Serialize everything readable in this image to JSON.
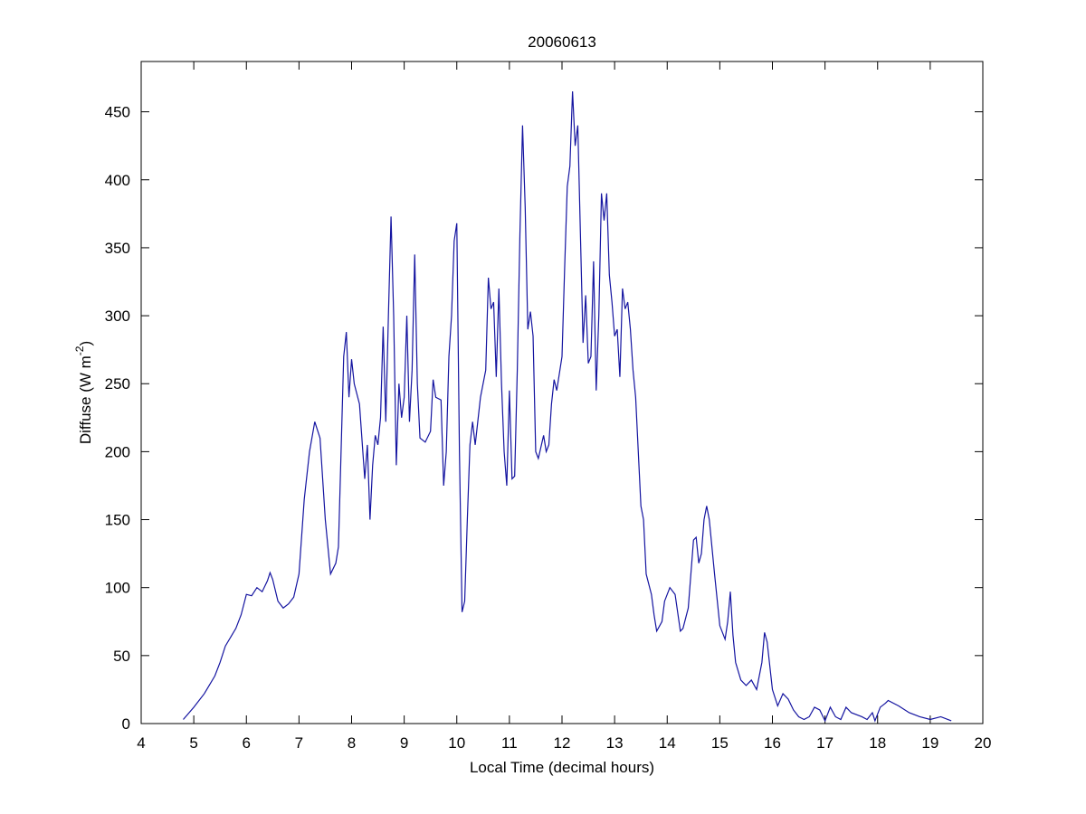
{
  "chart_data": {
    "type": "line",
    "title": "20060613",
    "x_label": "Local Time (decimal hours)",
    "y_label": {
      "text": "Diffuse (W m",
      "superscript": "-2",
      "suffix": ")"
    },
    "xlim": [
      4,
      20
    ],
    "xticks": [
      4,
      5,
      6,
      7,
      8,
      9,
      10,
      11,
      12,
      13,
      14,
      15,
      16,
      17,
      18,
      19,
      20
    ],
    "ylim": [
      0,
      487
    ],
    "yticks": [
      0,
      50,
      100,
      150,
      200,
      250,
      300,
      350,
      400,
      450
    ],
    "grid": false,
    "series": [
      {
        "color": "#1414a0",
        "x": [
          4.8,
          5.0,
          5.2,
          5.4,
          5.5,
          5.6,
          5.8,
          5.9,
          6.0,
          6.1,
          6.2,
          6.3,
          6.4,
          6.45,
          6.5,
          6.6,
          6.7,
          6.8,
          6.9,
          7.0,
          7.1,
          7.2,
          7.3,
          7.4,
          7.5,
          7.6,
          7.7,
          7.75,
          7.85,
          7.9,
          7.95,
          8.0,
          8.05,
          8.15,
          8.25,
          8.3,
          8.35,
          8.4,
          8.45,
          8.5,
          8.55,
          8.6,
          8.65,
          8.7,
          8.75,
          8.8,
          8.85,
          8.9,
          8.95,
          9.0,
          9.05,
          9.1,
          9.15,
          9.2,
          9.25,
          9.3,
          9.4,
          9.5,
          9.55,
          9.6,
          9.7,
          9.75,
          9.8,
          9.85,
          9.9,
          9.95,
          10.0,
          10.05,
          10.1,
          10.15,
          10.2,
          10.25,
          10.3,
          10.35,
          10.45,
          10.55,
          10.6,
          10.65,
          10.7,
          10.75,
          10.8,
          10.85,
          10.9,
          10.95,
          11.0,
          11.05,
          11.1,
          11.15,
          11.2,
          11.25,
          11.3,
          11.35,
          11.4,
          11.45,
          11.5,
          11.55,
          11.65,
          11.7,
          11.75,
          11.8,
          11.85,
          11.9,
          12.0,
          12.05,
          12.1,
          12.15,
          12.2,
          12.25,
          12.3,
          12.35,
          12.4,
          12.45,
          12.5,
          12.55,
          12.6,
          12.65,
          12.7,
          12.75,
          12.8,
          12.85,
          12.9,
          12.95,
          13.0,
          13.05,
          13.1,
          13.15,
          13.2,
          13.25,
          13.3,
          13.35,
          13.4,
          13.45,
          13.5,
          13.55,
          13.6,
          13.7,
          13.75,
          13.8,
          13.9,
          13.95,
          14.05,
          14.15,
          14.25,
          14.3,
          14.4,
          14.45,
          14.5,
          14.55,
          14.6,
          14.65,
          14.7,
          14.75,
          14.8,
          14.9,
          15.0,
          15.1,
          15.15,
          15.2,
          15.25,
          15.3,
          15.4,
          15.5,
          15.6,
          15.7,
          15.8,
          15.85,
          15.9,
          16.0,
          16.1,
          16.2,
          16.3,
          16.4,
          16.5,
          16.6,
          16.7,
          16.8,
          16.9,
          17.0,
          17.1,
          17.2,
          17.3,
          17.4,
          17.5,
          17.7,
          17.8,
          17.9,
          17.95,
          18.05,
          18.15,
          18.2,
          18.4,
          18.6,
          18.8,
          19.0,
          19.2,
          19.4
        ],
        "values": [
          3,
          12,
          22,
          35,
          45,
          57,
          70,
          80,
          95,
          94,
          100,
          97,
          105,
          111,
          106,
          90,
          85,
          88,
          93,
          110,
          165,
          200,
          222,
          210,
          150,
          110,
          118,
          130,
          270,
          288,
          240,
          268,
          250,
          235,
          180,
          205,
          150,
          190,
          212,
          205,
          225,
          292,
          222,
          300,
          373,
          300,
          190,
          250,
          225,
          240,
          300,
          222,
          260,
          345,
          250,
          210,
          207,
          215,
          253,
          240,
          238,
          175,
          200,
          270,
          300,
          355,
          368,
          200,
          82,
          90,
          150,
          205,
          222,
          205,
          240,
          260,
          328,
          305,
          310,
          255,
          320,
          250,
          200,
          175,
          245,
          180,
          182,
          260,
          360,
          440,
          380,
          290,
          303,
          285,
          200,
          195,
          212,
          200,
          205,
          235,
          253,
          245,
          270,
          335,
          395,
          410,
          465,
          425,
          440,
          360,
          280,
          315,
          265,
          270,
          340,
          245,
          300,
          390,
          370,
          390,
          330,
          310,
          285,
          290,
          255,
          320,
          305,
          310,
          290,
          260,
          240,
          200,
          160,
          150,
          110,
          95,
          80,
          68,
          75,
          90,
          100,
          95,
          68,
          70,
          85,
          110,
          135,
          137,
          118,
          125,
          150,
          160,
          150,
          110,
          72,
          62,
          75,
          97,
          65,
          45,
          32,
          28,
          32,
          25,
          45,
          67,
          60,
          25,
          13,
          22,
          18,
          10,
          5,
          3,
          5,
          12,
          10,
          2,
          12,
          5,
          3,
          12,
          8,
          5,
          3,
          8,
          2,
          12,
          15,
          17,
          13,
          8,
          5,
          3,
          5,
          2
        ]
      }
    ]
  }
}
